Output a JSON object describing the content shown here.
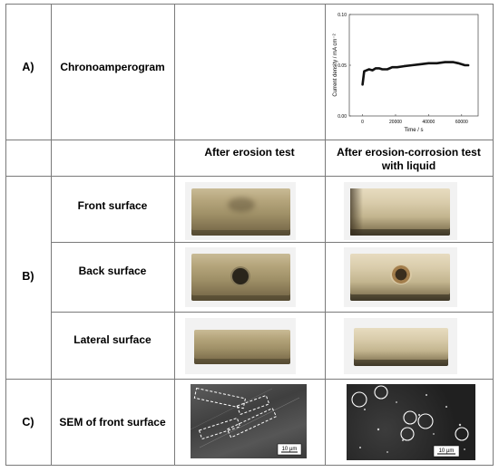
{
  "rows": {
    "a": {
      "label": "A)",
      "name": "Chronoamperogram",
      "chart": {
        "ylabel": "Current density / mA cm⁻²",
        "xlabel": "Time / s",
        "yticks": [
          "0.10",
          "0.05",
          "0.00"
        ],
        "xticks": [
          "0",
          "20000",
          "40000",
          "60000"
        ]
      }
    },
    "headers": {
      "col1": "After erosion test",
      "col2": "After erosion-corrosion test with liquid"
    },
    "b": {
      "label": "B)",
      "front": "Front surface",
      "back": "Back surface",
      "lateral": "Lateral surface"
    },
    "c": {
      "label": "C)",
      "name": "SEM of front surface",
      "scale1": "10 µm",
      "scale2": "10 µm"
    }
  },
  "chart_data": {
    "type": "line",
    "xlabel": "Time / s",
    "ylabel": "Current density / mA cm⁻²",
    "xlim": [
      -8000,
      70000
    ],
    "ylim": [
      0,
      0.1
    ],
    "series": [
      {
        "x": [
          0,
          1000,
          2500,
          4000,
          6000,
          8000,
          10000,
          12000,
          15000,
          18000,
          21000,
          25000,
          30000,
          35000,
          40000,
          45000,
          50000,
          55000,
          58000,
          60000,
          62000,
          64000
        ],
        "values": [
          0.031,
          0.044,
          0.045,
          0.046,
          0.045,
          0.047,
          0.047,
          0.046,
          0.046,
          0.048,
          0.048,
          0.049,
          0.05,
          0.051,
          0.052,
          0.052,
          0.053,
          0.053,
          0.052,
          0.051,
          0.05,
          0.05
        ]
      }
    ]
  },
  "colors": {
    "grid": "#7a7a7a",
    "gold": "#a89a72",
    "sem_dark": "#2b2b2b"
  }
}
